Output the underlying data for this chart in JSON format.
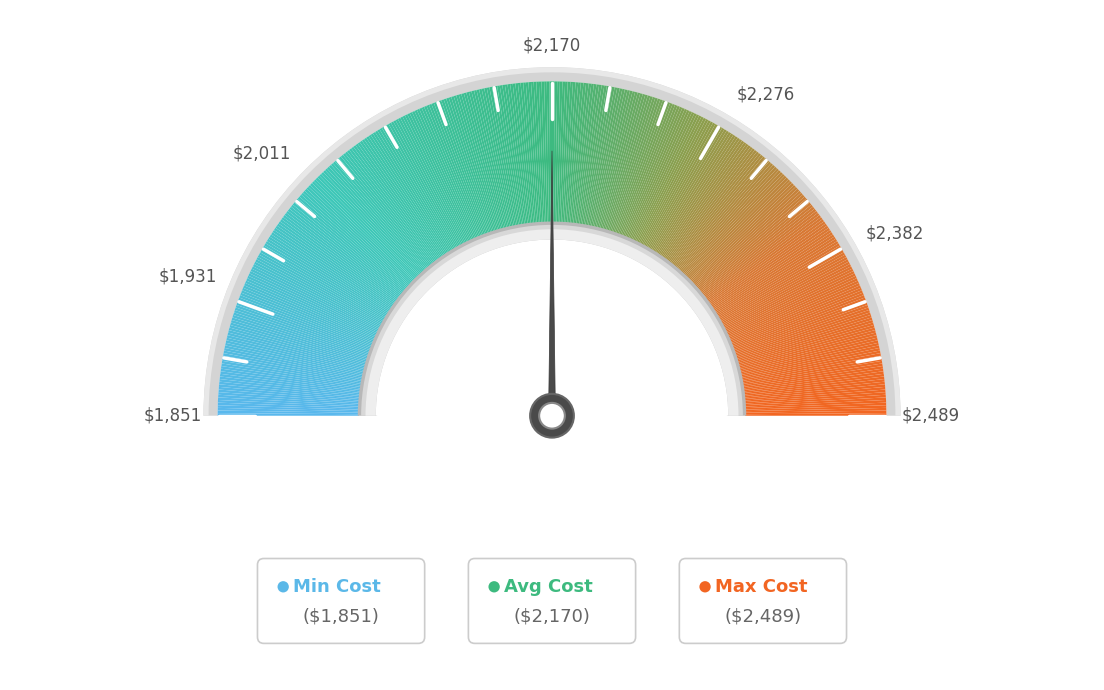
{
  "min_val": 1851,
  "max_val": 2489,
  "avg_val": 2170,
  "min_label": "$1,851",
  "max_label": "$2,489",
  "avg_label": "$2,170",
  "background_color": "#ffffff",
  "needle_color": "#555555",
  "legend": [
    {
      "label": "Min Cost",
      "value": "($1,851)",
      "color": "#5bb8e8"
    },
    {
      "label": "Avg Cost",
      "value": "($2,170)",
      "color": "#3dba7f"
    },
    {
      "label": "Max Cost",
      "value": "($2,489)",
      "color": "#f26522"
    }
  ],
  "label_data": [
    [
      1851,
      "$1,851"
    ],
    [
      1931,
      "$1,931"
    ],
    [
      2011,
      "$2,011"
    ],
    [
      2170,
      "$2,170"
    ],
    [
      2276,
      "$2,276"
    ],
    [
      2382,
      "$2,382"
    ],
    [
      2489,
      "$2,489"
    ]
  ],
  "color_stops": [
    [
      0.0,
      [
        0.35,
        0.72,
        0.93
      ]
    ],
    [
      0.25,
      [
        0.24,
        0.78,
        0.72
      ]
    ],
    [
      0.5,
      [
        0.24,
        0.73,
        0.5
      ]
    ],
    [
      0.65,
      [
        0.55,
        0.62,
        0.3
      ]
    ],
    [
      0.8,
      [
        0.85,
        0.47,
        0.2
      ]
    ],
    [
      1.0,
      [
        0.95,
        0.4,
        0.13
      ]
    ]
  ]
}
